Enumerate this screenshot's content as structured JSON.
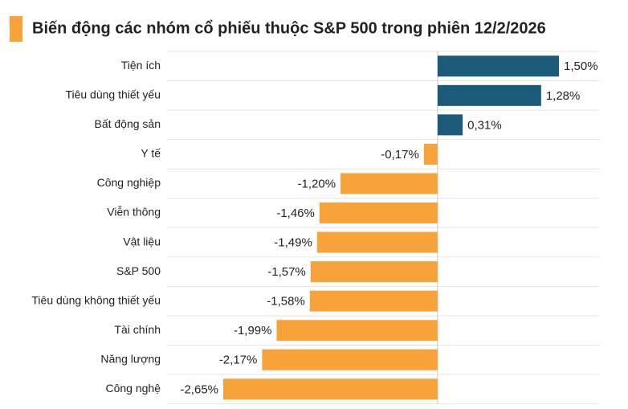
{
  "chart_data": {
    "type": "hbar",
    "title": "Biến động các nhóm cổ phiếu thuộc S&P 500 trong phiên 12/2/2026",
    "categories": [
      "Tiện ích",
      "Tiêu dùng thiết yếu",
      "Bất động sản",
      "Y tế",
      "Công nghiệp",
      "Viễn thông",
      "Vật liệu",
      "S&P 500",
      "Tiêu dùng không thiết yếu",
      "Tài chính",
      "Năng lượng",
      "Công nghệ"
    ],
    "values": [
      1.5,
      1.28,
      0.31,
      -0.17,
      -1.2,
      -1.46,
      -1.49,
      -1.57,
      -1.58,
      -1.99,
      -2.17,
      -2.65
    ],
    "value_labels": [
      "1,50%",
      "1,28%",
      "0,31%",
      "-0,17%",
      "-1,20%",
      "-1,46%",
      "-1,49%",
      "-1,57%",
      "-1,58%",
      "-1,99%",
      "-2,17%",
      "-2,65%"
    ],
    "color_positive": "#1b5a78",
    "color_negative": "#f7a33a",
    "grid": true
  }
}
